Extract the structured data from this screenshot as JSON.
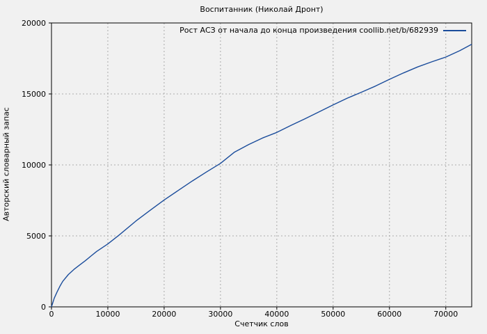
{
  "colors": {
    "background": "#f1f1f1",
    "line": "#1a4c9b",
    "grid": "#aaaaaa",
    "border": "#000000",
    "text": "#000000"
  },
  "chart_data": {
    "type": "line",
    "title": "Воспитанник (Николай Дронт)",
    "xlabel": "Счетчик слов",
    "ylabel": "Авторский словарный запас",
    "legend": [
      {
        "name": "Рост АСЗ от начала до конца произведения coollib.net/b/682939",
        "color": "#1a4c9b"
      }
    ],
    "legend_position": "top-right-inside",
    "grid": true,
    "xlim": [
      0,
      74600
    ],
    "ylim": [
      0,
      20000
    ],
    "xticks": [
      0,
      10000,
      20000,
      30000,
      40000,
      50000,
      60000,
      70000
    ],
    "yticks": [
      0,
      5000,
      10000,
      15000,
      20000
    ],
    "series": [
      {
        "name": "Рост АСЗ от начала до конца произведения coollib.net/b/682939",
        "color": "#1a4c9b",
        "points": [
          [
            0,
            0
          ],
          [
            500,
            620
          ],
          [
            1000,
            1060
          ],
          [
            1500,
            1450
          ],
          [
            2000,
            1800
          ],
          [
            3000,
            2280
          ],
          [
            4000,
            2640
          ],
          [
            5000,
            2950
          ],
          [
            6000,
            3250
          ],
          [
            7000,
            3580
          ],
          [
            8000,
            3900
          ],
          [
            10000,
            4430
          ],
          [
            12000,
            5060
          ],
          [
            15000,
            6050
          ],
          [
            17500,
            6800
          ],
          [
            20000,
            7530
          ],
          [
            22500,
            8200
          ],
          [
            25000,
            8870
          ],
          [
            27500,
            9500
          ],
          [
            30000,
            10110
          ],
          [
            32500,
            10900
          ],
          [
            35000,
            11430
          ],
          [
            37500,
            11900
          ],
          [
            40000,
            12290
          ],
          [
            42500,
            12780
          ],
          [
            45000,
            13250
          ],
          [
            47500,
            13740
          ],
          [
            50000,
            14230
          ],
          [
            52500,
            14700
          ],
          [
            55000,
            15120
          ],
          [
            57500,
            15550
          ],
          [
            60000,
            16030
          ],
          [
            62500,
            16480
          ],
          [
            65000,
            16900
          ],
          [
            67500,
            17260
          ],
          [
            70000,
            17600
          ],
          [
            72500,
            18050
          ],
          [
            74600,
            18500
          ]
        ]
      }
    ]
  }
}
